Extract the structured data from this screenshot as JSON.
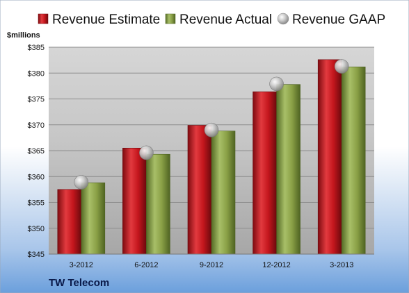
{
  "company": "TW Telecom",
  "chart_data": {
    "type": "bar",
    "ylabel": "$millions",
    "ylim": [
      345,
      385
    ],
    "ytick_step": 5,
    "ytick_prefix": "$",
    "grid": true,
    "legend_position": "top",
    "categories": [
      "3-2012",
      "6-2012",
      "9-2012",
      "12-2012",
      "3-2013"
    ],
    "series": [
      {
        "name": "Revenue Estimate",
        "type": "bar",
        "color": "#c0141c",
        "values": [
          357.5,
          365.5,
          369.9,
          376.4,
          382.6
        ]
      },
      {
        "name": "Revenue Actual",
        "type": "bar",
        "color": "#8aa046",
        "values": [
          358.8,
          364.3,
          368.8,
          377.8,
          381.2
        ]
      },
      {
        "name": "Revenue GAAP",
        "type": "marker",
        "color": "#a0a0a0",
        "values": [
          358.9,
          364.6,
          369.0,
          377.9,
          381.3
        ]
      }
    ]
  }
}
